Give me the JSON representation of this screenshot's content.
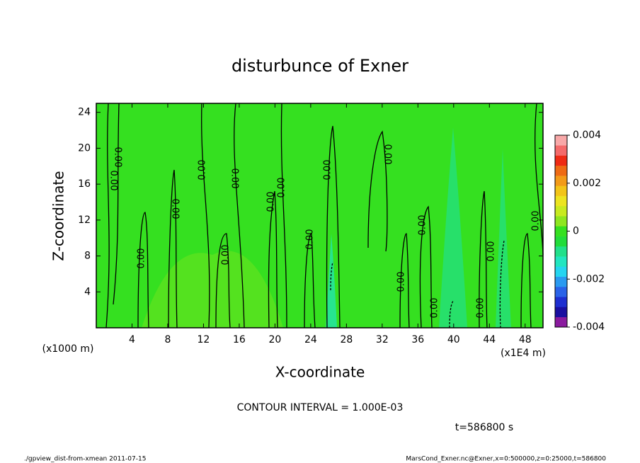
{
  "chart_data": {
    "type": "contour",
    "title": "disturbunce of Exner",
    "x_label": "X-coordinate",
    "y_label": "Z-coordinate",
    "x_unit": "(x1E4 m)",
    "y_unit": "(x1000 m)",
    "xlim": [
      0,
      50
    ],
    "xticks": [
      4,
      8,
      12,
      16,
      20,
      24,
      28,
      32,
      36,
      40,
      44,
      48
    ],
    "ylim": [
      0,
      25
    ],
    "yticks": [
      4,
      8,
      12,
      16,
      20,
      24
    ],
    "contour_labels": [
      "0.00",
      "0.00",
      "0.00",
      "0.00",
      "0.00",
      "0.00",
      "0.00",
      "0.00",
      "0.00",
      "0.00",
      "0.00",
      "0.00",
      "0.00",
      "0.00",
      "0.00",
      "0.00",
      "0.00",
      "0.00"
    ],
    "contour_interval": "CONTOUR INTERVAL = 1.000E-03",
    "time": "t=586800 s",
    "colorbar": {
      "lim": [
        -0.004,
        0.004
      ],
      "ticks": [
        -0.004,
        -0.002,
        0,
        0.002,
        0.004
      ],
      "colors": [
        "#8a1a9e",
        "#1a0fa0",
        "#1e2fd0",
        "#2a63e8",
        "#2a9af0",
        "#25d5f0",
        "#22e6c0",
        "#22e08a",
        "#22dc3a",
        "#35e020",
        "#8ee620",
        "#c8ea20",
        "#ece420",
        "#f2c418",
        "#f29a18",
        "#ee6a14",
        "#ee2a14",
        "#f46a6a",
        "#f8a8a8"
      ]
    },
    "footer_left": "./gpview_dist-from-xmean  2011-07-15",
    "footer_right": "MarsCond_Exner.nc@Exner,x=0:500000,z=0:25000,t=586800"
  }
}
